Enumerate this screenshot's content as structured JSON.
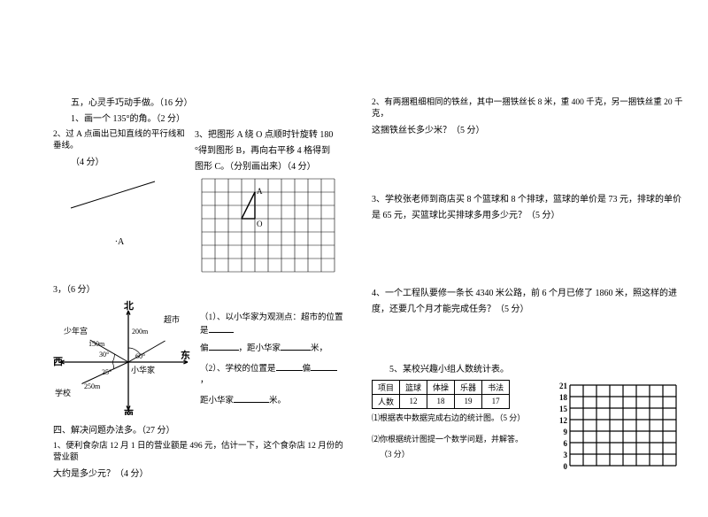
{
  "left": {
    "sec5_title": "五，心灵手巧动手做。（16 分）",
    "sec5_q1": "1、画一个 135°的角。（2 分）",
    "sec5_q2a": "2、过 A 点画出已知直线的平行线和垂线。",
    "sec5_q2b": "（4 分）",
    "pointA": "·A",
    "sec5_q3a": "3、把图形 A 绕 O 点顺时针旋转 180",
    "sec5_q3b": "°得到图形 B，再向右平移 4 格得到",
    "sec5_q3c": "图形 C。（分别画出来）（4 分）",
    "tri_A": "A",
    "tri_O": "O",
    "sec5_q3d": "3，（6 分）",
    "compass": {
      "n": "北",
      "s": "南",
      "w": "西",
      "e": "东",
      "market": "超市",
      "youth": "少年宫",
      "school": "学校",
      "home": "小华家",
      "d200": "200m",
      "d150": "150m",
      "d250": "250m",
      "a30": "30°",
      "a60": "60°",
      "a25": "25°"
    },
    "q3_1a": "（1）、以小华家为观测点：超市的位置是",
    "q3_1b": "偏",
    "q3_1c": "，距小华家",
    "q3_1d": "米，",
    "q3_2a": "（2）、学校的位置是",
    "q3_2b": "偏",
    "q3_2c": "，",
    "q3_2d": "距小华家",
    "q3_2e": "米。",
    "sec4_title": "四、解决问题办法多。（27 分）",
    "sec4_q1a": "1、便利食杂店 12 月 1 日的营业额是 496 元，估计一下，这个食杂店 12 月份的营业额",
    "sec4_q1b": "大约是多少元？（4 分）"
  },
  "right": {
    "q2a": "2、有两捆粗细相同的铁丝，其中一捆铁丝长 8 米，重 400 千克，另一捆铁丝重 20 千克，",
    "q2b": "这捆铁丝长多少米？（5 分）",
    "q3a": "3、学校张老师到商店买 8 个篮球和 8 个排球，篮球的单价是 73 元，排球的单价",
    "q3b": "是 65 元，买篮球比买排球多用多少元？（5 分）",
    "q4a": "4、一个工程队要修一条长 4340 米公路，前 6 个月已修了 1860 米，照这样的进",
    "q4b": "度，还要几个月才能完成任务？（5 分）",
    "q5": "5、某校兴趣小组人数统计表。",
    "tbl": {
      "h0": "项目",
      "h1": "篮球",
      "h2": "体操",
      "h3": "乐器",
      "h4": "书法",
      "r0": "人数",
      "r1": "12",
      "r2": "18",
      "r3": "19",
      "r4": "17"
    },
    "q5_1": "⑴根据表中数据完成右边的统计图。（5 分）",
    "q5_2a": "⑵你根据统计图提一个数学问题，并解答。",
    "q5_2b": "（3 分）",
    "yticks": [
      "21",
      "18",
      "15",
      "12",
      "9",
      "6",
      "3",
      "0"
    ]
  },
  "style": {
    "grid_color": "#000000",
    "cell": 15
  }
}
